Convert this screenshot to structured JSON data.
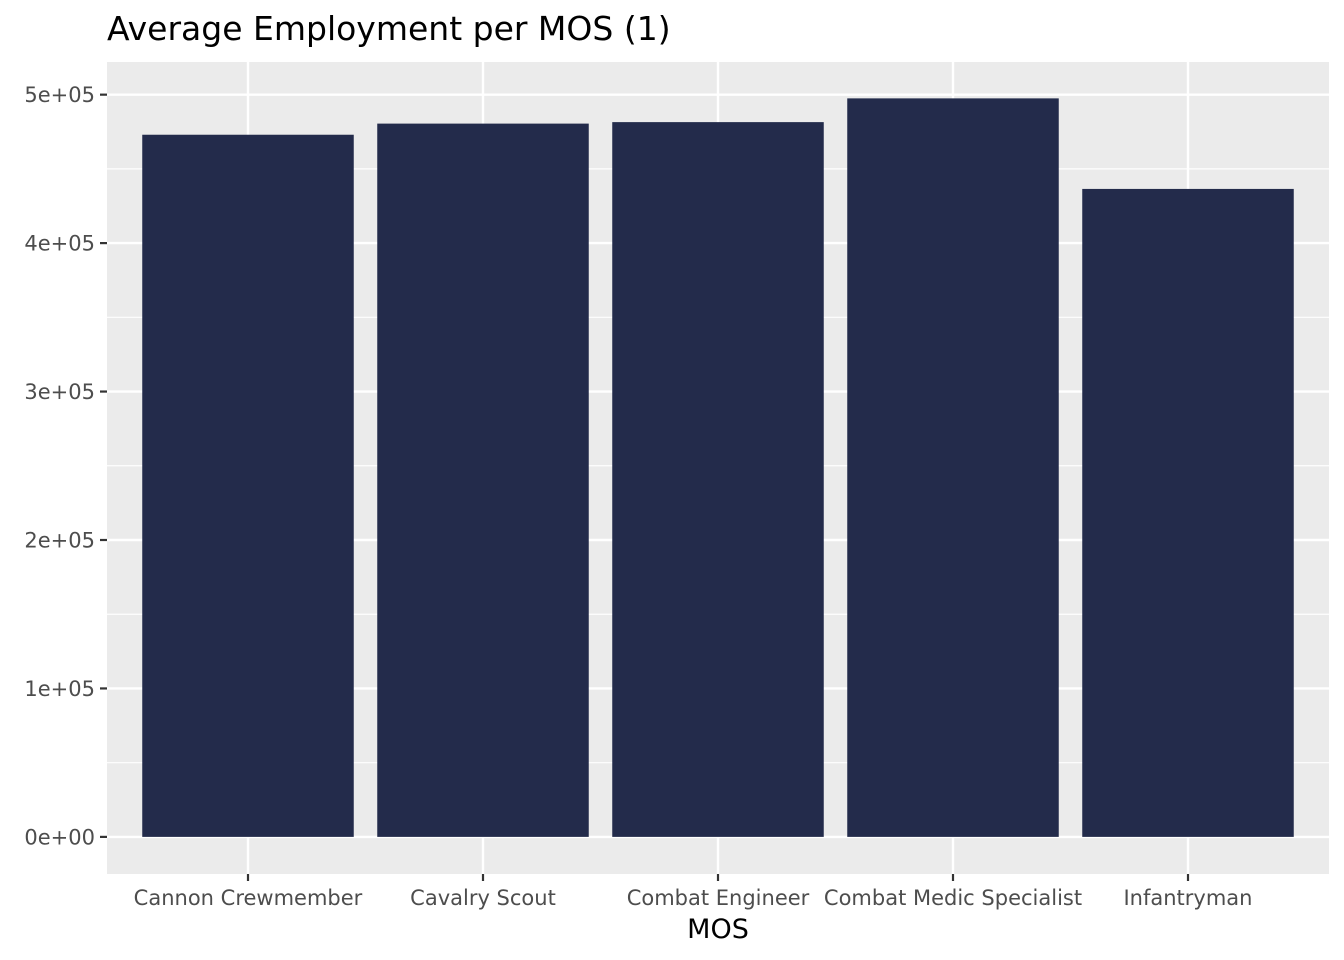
{
  "chart_data": {
    "type": "bar",
    "title": "Average Employment per MOS (1)",
    "xlabel": "MOS",
    "ylabel": "",
    "categories": [
      "Cannon Crewmember",
      "Cavalry Scout",
      "Combat Engineer",
      "Combat Medic Specialist",
      "Infantryman"
    ],
    "values": [
      473000,
      480500,
      481500,
      497500,
      436500
    ],
    "ylim": [
      -25000,
      522000
    ],
    "yticks": [
      0,
      100000,
      200000,
      300000,
      400000,
      500000
    ],
    "ytick_labels": [
      "0e+00",
      "1e+05",
      "2e+05",
      "3e+05",
      "4e+05",
      "5e+05"
    ],
    "grid": true,
    "legend": "none",
    "colors": {
      "bar": "#232b4b",
      "panel": "#ebebeb",
      "grid": "#ffffff",
      "tick": "#333333",
      "tick_label": "#4d4d4d"
    }
  }
}
